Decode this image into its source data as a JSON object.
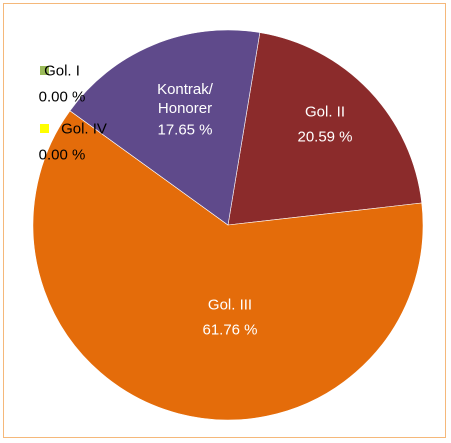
{
  "chart_data": {
    "type": "pie",
    "categories": [
      "Gol. I",
      "Gol. II",
      "Gol. III",
      "Gol. IV",
      "Kontrak/\nHonorer"
    ],
    "values": [
      0.0,
      20.59,
      61.76,
      0.0,
      17.65
    ],
    "value_labels": [
      "0.00 %",
      "20.59 %",
      "61.76 %",
      "0.00 %",
      "17.65 %"
    ],
    "colors": [
      "#9bbb59",
      "#8b2b2b",
      "#e46c0a",
      "#ffff00",
      "#5f4a8b"
    ]
  }
}
